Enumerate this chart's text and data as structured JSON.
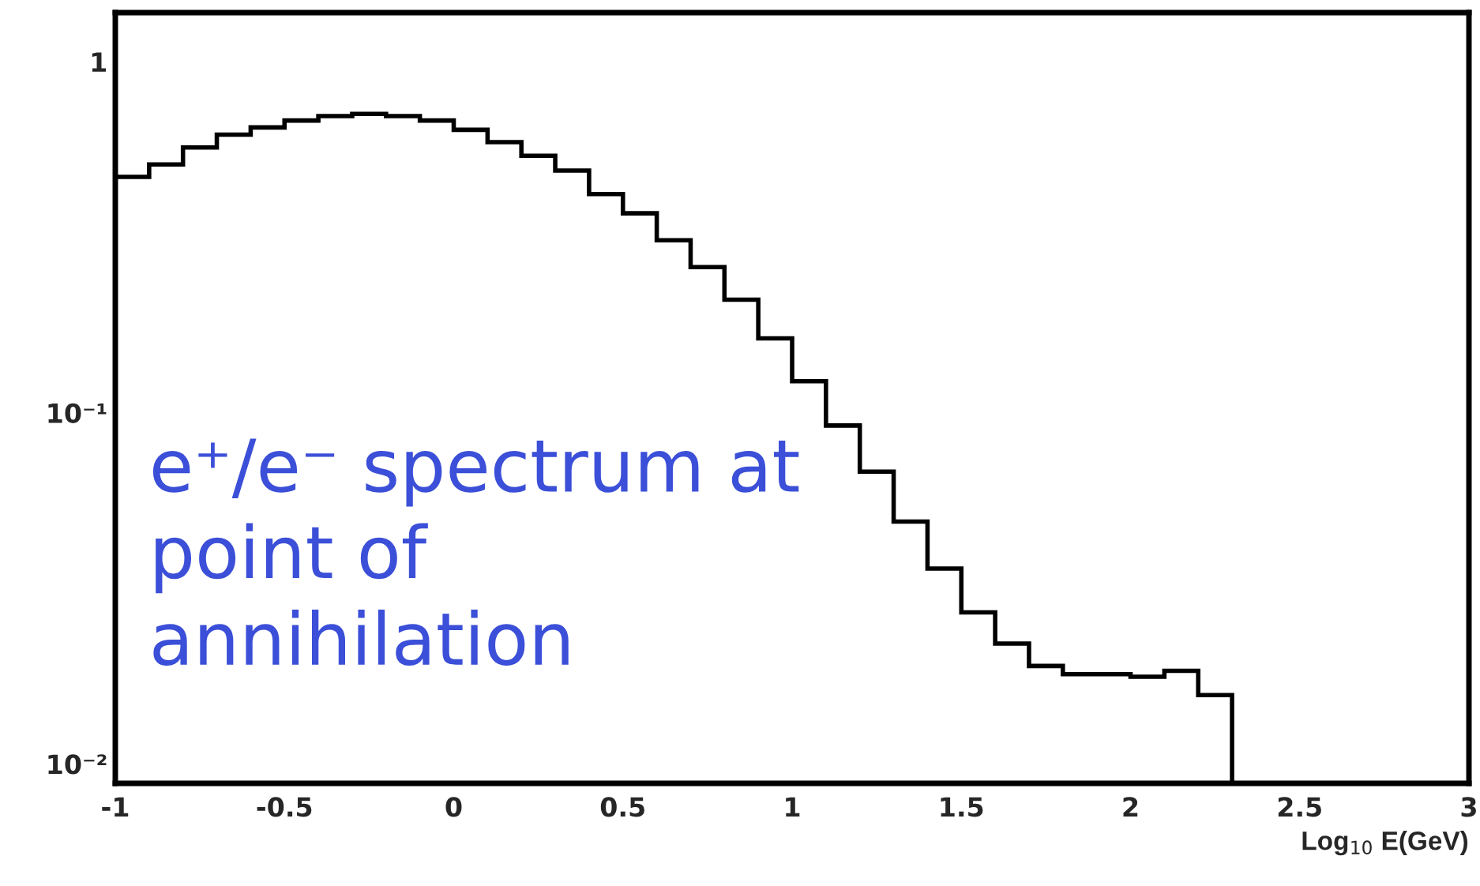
{
  "chart_data": {
    "type": "histogram",
    "xlabel": "Log$_{10}$ E(GeV)",
    "bins": [
      -1.0,
      -0.9,
      -0.8,
      -0.7,
      -0.6,
      -0.5,
      -0.4,
      -0.3,
      -0.2,
      -0.1,
      0.0,
      0.1,
      0.2,
      0.3,
      0.4,
      0.5,
      0.6,
      0.7,
      0.8,
      0.9,
      1.0,
      1.1,
      1.2,
      1.3,
      1.4,
      1.5,
      1.6,
      1.7,
      1.8,
      1.9,
      2.0,
      2.1,
      2.2,
      2.3
    ],
    "values": [
      0.47,
      0.51,
      0.57,
      0.62,
      0.65,
      0.68,
      0.7,
      0.71,
      0.7,
      0.68,
      0.64,
      0.59,
      0.54,
      0.49,
      0.42,
      0.37,
      0.31,
      0.26,
      0.21,
      0.163,
      0.123,
      0.092,
      0.068,
      0.049,
      0.036,
      0.027,
      0.022,
      0.019,
      0.018,
      0.018,
      0.0177,
      0.0184,
      0.0157
    ],
    "color": "#000000",
    "log": "y",
    "xlim": [
      -1,
      3
    ],
    "xticks": [
      {
        "value": -1,
        "label": "-1"
      },
      {
        "value": -0.5,
        "label": "-0.5"
      },
      {
        "value": 0,
        "label": "0"
      },
      {
        "value": 0.5,
        "label": "0.5"
      },
      {
        "value": 1,
        "label": "1"
      },
      {
        "value": 1.5,
        "label": "1.5"
      },
      {
        "value": 2,
        "label": "2"
      },
      {
        "value": 2.5,
        "label": "2.5"
      },
      {
        "value": 3,
        "label": "3"
      }
    ],
    "ylim": [
      0.0088,
      1.38
    ],
    "yticks": [
      {
        "value": 1,
        "label": "1"
      },
      {
        "value": 0.1,
        "label": "10⁻¹"
      },
      {
        "value": 0.01,
        "label": "10⁻²"
      }
    ],
    "grid": false,
    "annotations": [
      "e⁺/e⁻ spectrum at\npoint of\nannihilation"
    ]
  }
}
